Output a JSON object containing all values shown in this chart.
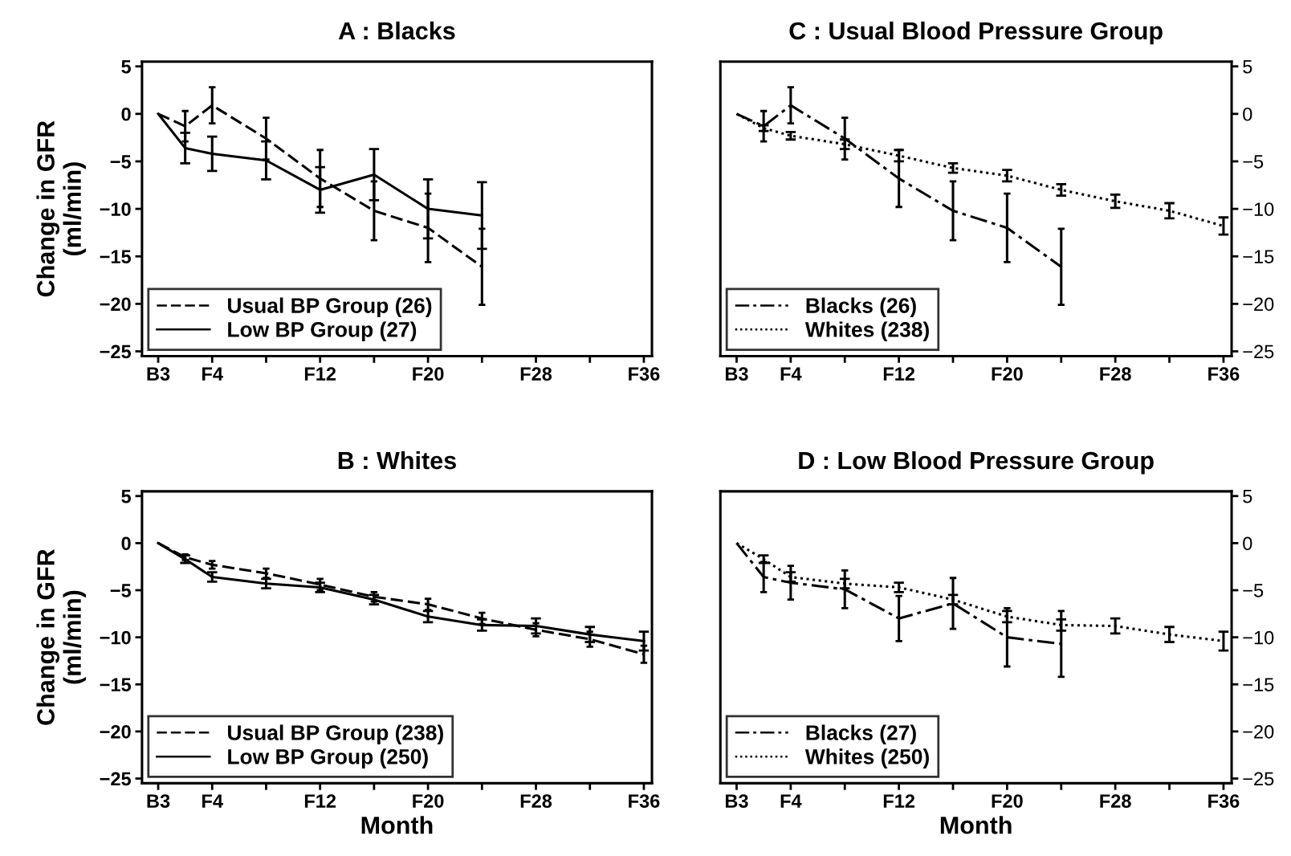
{
  "chart_data": [
    {
      "type": "line",
      "title": "A : Blacks",
      "ylabel": "Change in GFR\n(ml/min)",
      "ylim": [
        -25.5,
        5.5
      ],
      "categories": [
        "B3",
        null,
        "F4",
        null,
        null,
        null,
        "F12",
        null,
        null,
        null,
        "F20",
        null,
        null,
        null,
        "F28",
        null,
        null,
        null,
        "F36"
      ],
      "yticks": [
        5,
        0,
        {
          "value": -5,
          "label": "−5"
        },
        {
          "value": -10,
          "label": "−10"
        },
        {
          "value": -15,
          "label": "−15"
        },
        {
          "value": -20,
          "label": "−20"
        },
        {
          "value": -25,
          "label": "−25"
        }
      ],
      "legend": "bottom left",
      "grid": false,
      "marker": "none",
      "series": [
        {
          "name": "Usual BP Group (26)",
          "color": "#000000",
          "line_style": "dashed",
          "values": [
            0,
            -1.3,
            0.9,
            null,
            -2.6,
            null,
            -6.8,
            null,
            -10.2,
            null,
            -12.0,
            null,
            -16.1,
            null,
            null,
            null,
            null,
            null,
            null
          ],
          "errors": [
            null,
            1.6,
            1.9,
            null,
            2.2,
            null,
            3.0,
            null,
            3.1,
            null,
            3.6,
            null,
            4.0,
            null,
            null,
            null,
            null,
            null,
            null
          ]
        },
        {
          "name": "Low BP Group (27)",
          "color": "#000000",
          "line_style": "solid",
          "values": [
            0,
            -3.6,
            -4.2,
            null,
            -4.9,
            null,
            -8.0,
            null,
            -6.4,
            null,
            -10.0,
            null,
            -10.7,
            null,
            null,
            null,
            null,
            null,
            null
          ],
          "errors": [
            null,
            1.6,
            1.8,
            null,
            2.0,
            null,
            2.4,
            null,
            2.7,
            null,
            3.1,
            null,
            3.5,
            null,
            null,
            null,
            null,
            null,
            null
          ]
        }
      ]
    },
    {
      "type": "line",
      "title": "C : Usual Blood Pressure Group",
      "ylim": [
        -25.5,
        5.5
      ],
      "categories": [
        "B3",
        null,
        "F4",
        null,
        null,
        null,
        "F12",
        null,
        null,
        null,
        "F20",
        null,
        null,
        null,
        "F28",
        null,
        null,
        null,
        "F36"
      ],
      "yticks": [
        5,
        0,
        {
          "value": -5,
          "label": "−5"
        },
        {
          "value": -10,
          "label": "−10"
        },
        {
          "value": -15,
          "label": "−15"
        },
        {
          "value": -20,
          "label": "−20"
        },
        {
          "value": -25,
          "label": "−25"
        }
      ],
      "legend": "bottom left",
      "grid": false,
      "marker": "none",
      "series": [
        {
          "name": "Blacks (26)",
          "color": "#000000",
          "line_style": "dashdot",
          "values": [
            0,
            -1.3,
            0.9,
            null,
            -2.6,
            null,
            -6.8,
            null,
            -10.2,
            null,
            -12.0,
            null,
            -16.1,
            null,
            null,
            null,
            null,
            null,
            null
          ],
          "errors": [
            null,
            1.6,
            1.9,
            null,
            2.2,
            null,
            3.0,
            null,
            3.1,
            null,
            3.6,
            null,
            4.0,
            null,
            null,
            null,
            null,
            null,
            null
          ]
        },
        {
          "name": "Whites (238)",
          "color": "#000000",
          "line_style": "dotted",
          "values": [
            0,
            -1.5,
            -2.3,
            null,
            -3.2,
            null,
            -4.4,
            null,
            -5.7,
            null,
            -6.5,
            null,
            -8.0,
            null,
            -9.2,
            null,
            -10.2,
            null,
            -11.8
          ],
          "errors": [
            null,
            0.3,
            0.4,
            null,
            0.5,
            null,
            0.6,
            null,
            0.5,
            null,
            0.6,
            null,
            0.6,
            null,
            0.7,
            null,
            0.8,
            null,
            0.9
          ]
        }
      ]
    },
    {
      "type": "line",
      "title": "B : Whites",
      "ylabel": "Change in GFR\n(ml/min)",
      "xlabel": "Month",
      "ylim": [
        -25.5,
        5.5
      ],
      "categories": [
        "B3",
        null,
        "F4",
        null,
        null,
        null,
        "F12",
        null,
        null,
        null,
        "F20",
        null,
        null,
        null,
        "F28",
        null,
        null,
        null,
        "F36"
      ],
      "yticks": [
        5,
        0,
        {
          "value": -5,
          "label": "−5"
        },
        {
          "value": -10,
          "label": "−10"
        },
        {
          "value": -15,
          "label": "−15"
        },
        {
          "value": -20,
          "label": "−20"
        },
        {
          "value": -25,
          "label": "−25"
        }
      ],
      "legend": "bottom left",
      "grid": false,
      "marker": "none",
      "series": [
        {
          "name": "Usual BP Group (238)",
          "color": "#000000",
          "line_style": "dashed",
          "values": [
            0,
            -1.5,
            -2.3,
            null,
            -3.2,
            null,
            -4.4,
            null,
            -5.7,
            null,
            -6.5,
            null,
            -8.0,
            null,
            -9.2,
            null,
            -10.2,
            null,
            -11.8
          ],
          "errors": [
            null,
            0.3,
            0.4,
            null,
            0.5,
            null,
            0.6,
            null,
            0.5,
            null,
            0.6,
            null,
            0.6,
            null,
            0.7,
            null,
            0.8,
            null,
            0.9
          ]
        },
        {
          "name": "Low BP Group (250)",
          "color": "#000000",
          "line_style": "solid",
          "values": [
            0,
            -1.7,
            -3.6,
            null,
            -4.3,
            null,
            -4.7,
            null,
            -6.0,
            null,
            -7.8,
            null,
            -8.7,
            null,
            -8.8,
            null,
            -9.7,
            null,
            -10.4
          ],
          "errors": [
            null,
            0.4,
            0.5,
            null,
            0.5,
            null,
            0.5,
            null,
            0.5,
            null,
            0.6,
            null,
            0.6,
            null,
            0.8,
            null,
            0.8,
            null,
            1.0
          ]
        }
      ]
    },
    {
      "type": "line",
      "title": "D : Low Blood Pressure Group",
      "xlabel": "Month",
      "ylim": [
        -25.5,
        5.5
      ],
      "categories": [
        "B3",
        null,
        "F4",
        null,
        null,
        null,
        "F12",
        null,
        null,
        null,
        "F20",
        null,
        null,
        null,
        "F28",
        null,
        null,
        null,
        "F36"
      ],
      "yticks": [
        5,
        0,
        {
          "value": -5,
          "label": "−5"
        },
        {
          "value": -10,
          "label": "−10"
        },
        {
          "value": -15,
          "label": "−15"
        },
        {
          "value": -20,
          "label": "−20"
        },
        {
          "value": -25,
          "label": "−25"
        }
      ],
      "legend": "bottom left",
      "grid": false,
      "marker": "none",
      "series": [
        {
          "name": "Blacks (27)",
          "color": "#000000",
          "line_style": "dashdot",
          "values": [
            0,
            -3.6,
            -4.2,
            null,
            -4.9,
            null,
            -8.0,
            null,
            -6.4,
            null,
            -10.0,
            null,
            -10.7,
            null,
            null,
            null,
            null,
            null,
            null
          ],
          "errors": [
            null,
            1.6,
            1.8,
            null,
            2.0,
            null,
            2.4,
            null,
            2.7,
            null,
            3.1,
            null,
            3.5,
            null,
            null,
            null,
            null,
            null,
            null
          ]
        },
        {
          "name": "Whites (250)",
          "color": "#000000",
          "line_style": "dotted",
          "values": [
            0,
            -1.7,
            -3.6,
            null,
            -4.3,
            null,
            -4.7,
            null,
            -6.0,
            null,
            -7.8,
            null,
            -8.7,
            null,
            -8.8,
            null,
            -9.7,
            null,
            -10.4
          ],
          "errors": [
            null,
            0.4,
            0.5,
            null,
            0.5,
            null,
            0.5,
            null,
            0.5,
            null,
            0.6,
            null,
            0.6,
            null,
            0.8,
            null,
            0.8,
            null,
            1.0
          ]
        }
      ]
    }
  ]
}
